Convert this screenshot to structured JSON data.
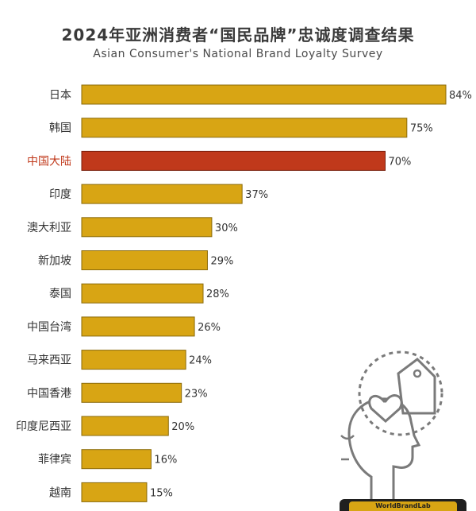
{
  "chart_data": {
    "type": "bar",
    "orientation": "horizontal",
    "title": "2024年亚洲消费者“国民品牌”忠诚度调查结果",
    "subtitle": "Asian Consumer's National Brand Loyalty Survey",
    "categories": [
      "日本",
      "韩国",
      "中国大陆",
      "印度",
      "澳大利亚",
      "新加坡",
      "泰国",
      "中国台湾",
      "马来西亚",
      "中国香港",
      "印度尼西亚",
      "菲律宾",
      "越南"
    ],
    "values": [
      84,
      75,
      70,
      37,
      30,
      29,
      28,
      26,
      24,
      23,
      20,
      16,
      15
    ],
    "value_labels": [
      "84%",
      "75%",
      "70%",
      "37%",
      "30%",
      "29%",
      "28%",
      "26%",
      "24%",
      "23%",
      "20%",
      "16%",
      "15%"
    ],
    "highlight_index": 2,
    "xlim": [
      0,
      84
    ],
    "grid": false,
    "colors": {
      "bar": "#d8a514",
      "bar_border": "#8a6a0a",
      "highlight": "#c0391b",
      "highlight_border": "#7a1f0c",
      "icon": "#7a7a7a"
    }
  },
  "badge": {
    "text": "WorldBrandLab"
  },
  "decor": {
    "icon": "head-with-heart-tag-icon"
  }
}
